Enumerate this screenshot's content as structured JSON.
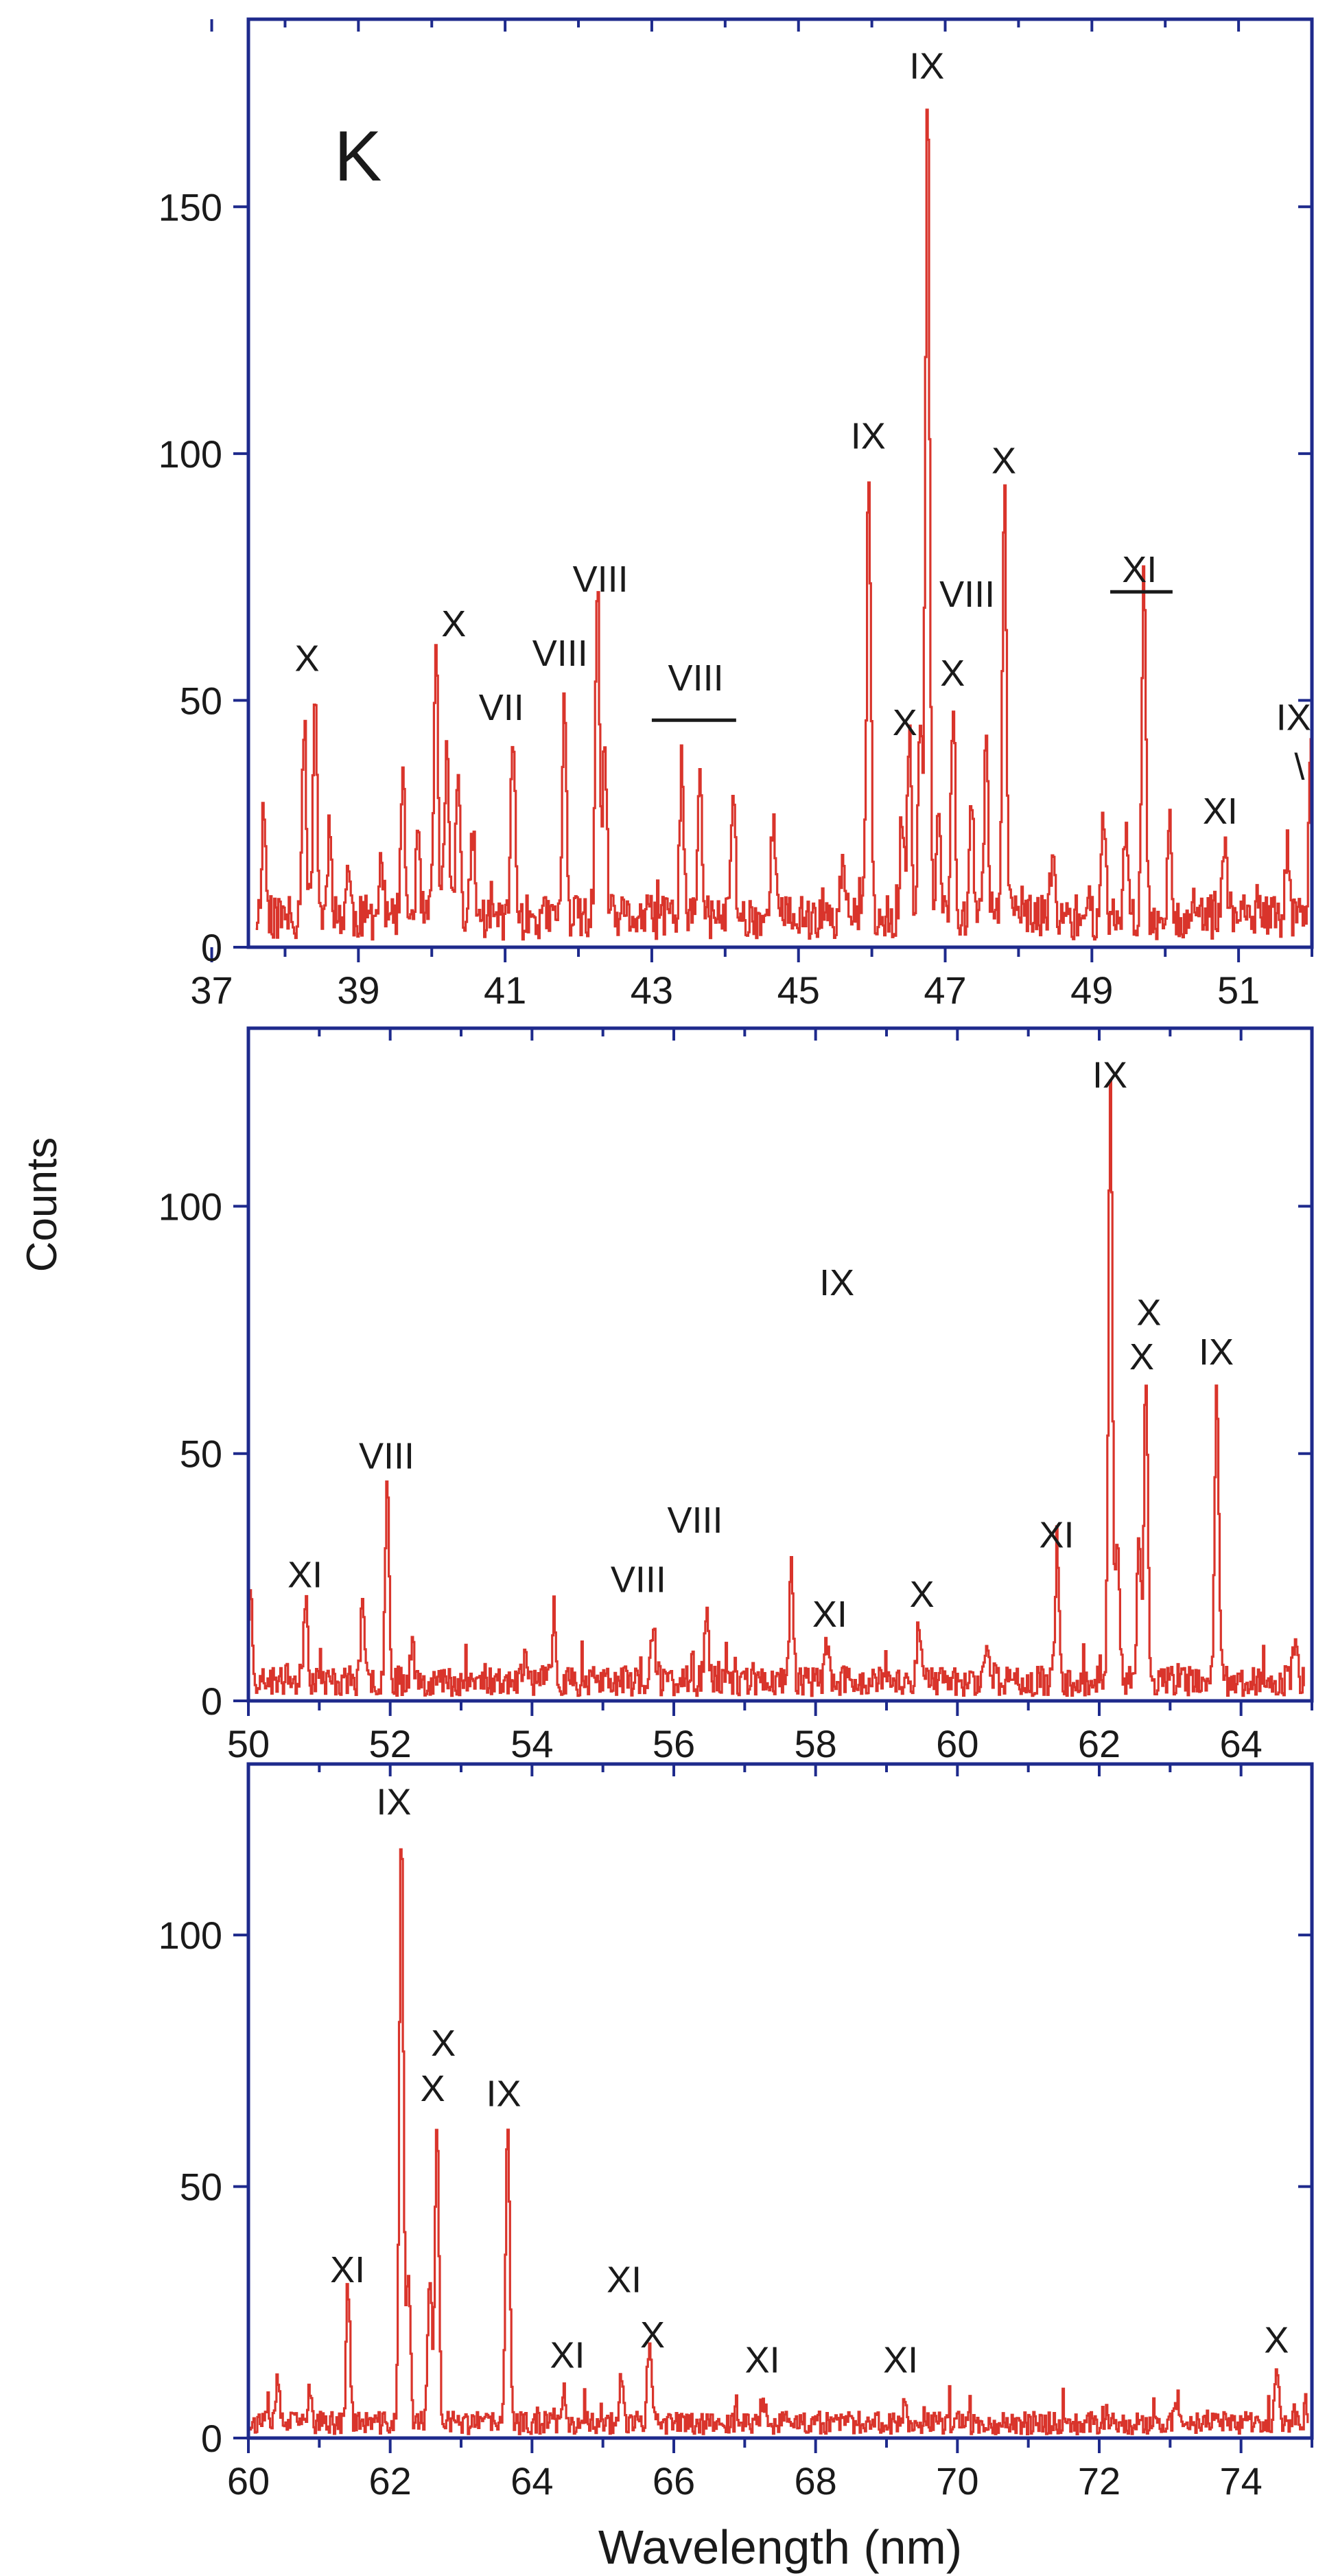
{
  "figure": {
    "ylabel": "Counts",
    "xlabel": "Wavelength (nm)"
  },
  "colors": {
    "axes": "#1e2a8c",
    "spectrum": "#d9342b",
    "text": "#1a1a1a",
    "background": "#ffffff"
  },
  "chart_data": [
    {
      "type": "line",
      "panel_label": "K",
      "xlim": [
        37.5,
        52
      ],
      "ylim": [
        0,
        188
      ],
      "xticks": [
        37,
        39,
        41,
        43,
        45,
        47,
        49,
        51
      ],
      "xticks_minor": [
        38,
        40,
        42,
        44,
        46,
        48,
        50,
        52
      ],
      "yticks": [
        0,
        50,
        100,
        150
      ],
      "baseline": 6,
      "start": 37.6,
      "end": 52.0,
      "noise_seed": 11,
      "peaks": [
        [
          37.7,
          22
        ],
        [
          38.25,
          40
        ],
        [
          38.4,
          46
        ],
        [
          38.6,
          20
        ],
        [
          38.85,
          10
        ],
        [
          39.3,
          12
        ],
        [
          39.6,
          26
        ],
        [
          39.8,
          15
        ],
        [
          40.05,
          55
        ],
        [
          40.2,
          36
        ],
        [
          40.35,
          32
        ],
        [
          40.55,
          18
        ],
        [
          41.1,
          37
        ],
        [
          41.8,
          43
        ],
        [
          42.25,
          64
        ],
        [
          42.35,
          35
        ],
        [
          43.4,
          32
        ],
        [
          43.65,
          28
        ],
        [
          44.1,
          27
        ],
        [
          44.65,
          22
        ],
        [
          45.6,
          14
        ],
        [
          45.95,
          92
        ],
        [
          46.4,
          20
        ],
        [
          46.5,
          37
        ],
        [
          46.65,
          40
        ],
        [
          46.75,
          168
        ],
        [
          46.9,
          22
        ],
        [
          47.1,
          44
        ],
        [
          47.35,
          24
        ],
        [
          47.55,
          34
        ],
        [
          47.8,
          90
        ],
        [
          48.45,
          12
        ],
        [
          49.15,
          20
        ],
        [
          49.45,
          18
        ],
        [
          49.7,
          67
        ],
        [
          50.05,
          18
        ],
        [
          50.8,
          17
        ],
        [
          51.65,
          14
        ],
        [
          51.98,
          38
        ]
      ],
      "annotations": [
        {
          "label": "X",
          "x": 38.3,
          "y": 56
        },
        {
          "label": "X",
          "x": 40.3,
          "y": 63
        },
        {
          "label": "VII",
          "x": 40.95,
          "y": 46
        },
        {
          "label": "VIII",
          "x": 41.75,
          "y": 57
        },
        {
          "label": "VIII",
          "x": 42.3,
          "y": 72
        },
        {
          "label": "VIII",
          "x": 43.6,
          "y": 52
        },
        {
          "label": "IX",
          "x": 45.95,
          "y": 101
        },
        {
          "label": "IX",
          "x": 46.75,
          "y": 176
        },
        {
          "label": "X",
          "x": 46.45,
          "y": 43
        },
        {
          "label": "VIII",
          "x": 47.3,
          "y": 69
        },
        {
          "label": "X",
          "x": 47.1,
          "y": 53
        },
        {
          "label": "X",
          "x": 47.8,
          "y": 96
        },
        {
          "label": "XI",
          "x": 49.65,
          "y": 74
        },
        {
          "label": "XI",
          "x": 50.75,
          "y": 25
        },
        {
          "label": "IX",
          "x": 51.75,
          "y": 44
        },
        {
          "label": "\\",
          "x": 51.83,
          "y": 34
        }
      ],
      "brackets": [
        {
          "from": 43.0,
          "to": 44.15,
          "y": 46
        },
        {
          "from": 49.25,
          "to": 50.1,
          "y": 72
        }
      ]
    },
    {
      "type": "line",
      "xlim": [
        50,
        65
      ],
      "ylim": [
        0,
        136
      ],
      "xticks": [
        50,
        52,
        54,
        56,
        58,
        60,
        62,
        64
      ],
      "xticks_minor": [
        51,
        53,
        55,
        57,
        59,
        61,
        63,
        65
      ],
      "yticks": [
        0,
        50,
        100
      ],
      "baseline": 4,
      "start": 50.0,
      "end": 64.9,
      "noise_seed": 23,
      "peaks": [
        [
          50.02,
          18
        ],
        [
          50.8,
          18
        ],
        [
          51.6,
          14
        ],
        [
          51.95,
          40
        ],
        [
          52.3,
          8
        ],
        [
          53.9,
          6
        ],
        [
          54.3,
          10
        ],
        [
          55.7,
          11
        ],
        [
          56.45,
          14
        ],
        [
          57.65,
          23
        ],
        [
          58.15,
          8
        ],
        [
          59.45,
          13
        ],
        [
          60.4,
          8
        ],
        [
          61.4,
          25
        ],
        [
          62.15,
          120
        ],
        [
          62.25,
          28
        ],
        [
          62.55,
          28
        ],
        [
          62.65,
          60
        ],
        [
          63.65,
          61
        ],
        [
          64.75,
          8
        ]
      ],
      "annotations": [
        {
          "label": "XI",
          "x": 50.8,
          "y": 23
        },
        {
          "label": "VIII",
          "x": 51.95,
          "y": 47
        },
        {
          "label": "VIII",
          "x": 55.5,
          "y": 22
        },
        {
          "label": "VIII",
          "x": 56.3,
          "y": 34
        },
        {
          "label": "IX",
          "x": 58.3,
          "y": 82
        },
        {
          "label": "XI",
          "x": 58.2,
          "y": 15
        },
        {
          "label": "X",
          "x": 59.5,
          "y": 19
        },
        {
          "label": "XI",
          "x": 61.4,
          "y": 31
        },
        {
          "label": "IX",
          "x": 62.15,
          "y": 124
        },
        {
          "label": "X",
          "x": 62.7,
          "y": 76
        },
        {
          "label": "X",
          "x": 62.6,
          "y": 67
        },
        {
          "label": "IX",
          "x": 63.65,
          "y": 68
        }
      ],
      "brackets": []
    },
    {
      "type": "line",
      "xlim": [
        60,
        75
      ],
      "ylim": [
        0,
        134
      ],
      "xticks": [
        60,
        62,
        64,
        66,
        68,
        70,
        72,
        74
      ],
      "xticks_minor": [
        61,
        63,
        65,
        67,
        69,
        71,
        73,
        75
      ],
      "yticks": [
        0,
        50,
        100
      ],
      "baseline": 3,
      "start": 60.0,
      "end": 74.95,
      "noise_seed": 37,
      "peaks": [
        [
          60.4,
          8
        ],
        [
          60.85,
          6
        ],
        [
          61.4,
          25
        ],
        [
          62.15,
          120
        ],
        [
          62.25,
          30
        ],
        [
          62.55,
          30
        ],
        [
          62.65,
          60
        ],
        [
          63.65,
          61
        ],
        [
          64.45,
          6
        ],
        [
          65.25,
          10
        ],
        [
          65.65,
          14
        ],
        [
          67.25,
          5
        ],
        [
          69.25,
          4
        ],
        [
          73.1,
          5
        ],
        [
          74.5,
          9
        ]
      ],
      "annotations": [
        {
          "label": "XI",
          "x": 61.4,
          "y": 31
        },
        {
          "label": "IX",
          "x": 62.05,
          "y": 124
        },
        {
          "label": "X",
          "x": 62.75,
          "y": 76
        },
        {
          "label": "X",
          "x": 62.6,
          "y": 67
        },
        {
          "label": "IX",
          "x": 63.6,
          "y": 66
        },
        {
          "label": "XI",
          "x": 64.5,
          "y": 14
        },
        {
          "label": "XI",
          "x": 65.3,
          "y": 29
        },
        {
          "label": "X",
          "x": 65.7,
          "y": 18
        },
        {
          "label": "XI",
          "x": 67.25,
          "y": 13
        },
        {
          "label": "XI",
          "x": 69.2,
          "y": 13
        },
        {
          "label": "X",
          "x": 74.5,
          "y": 17
        }
      ],
      "brackets": []
    }
  ]
}
